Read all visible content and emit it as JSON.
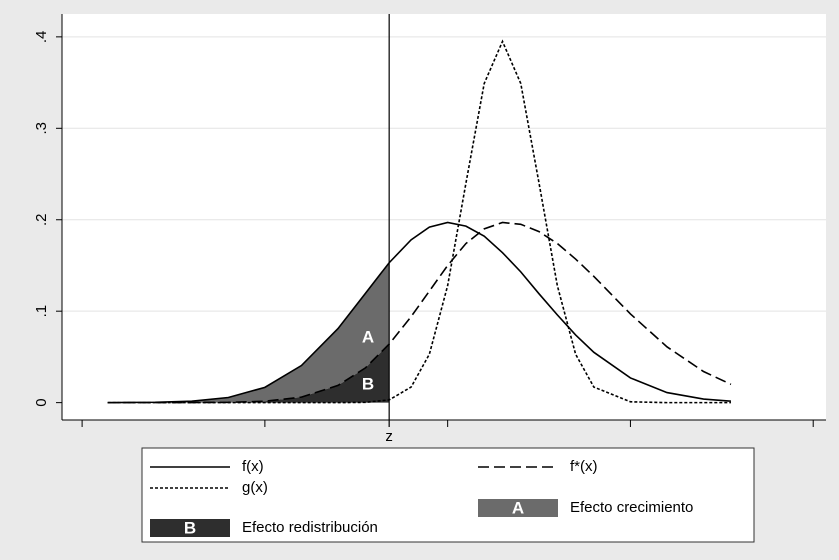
{
  "chart_data": {
    "type": "line",
    "x": [
      0.14,
      0.4,
      0.6,
      0.8,
      1.0,
      1.2,
      1.4,
      1.55,
      1.68,
      1.8,
      1.9,
      2.0,
      2.1,
      2.2,
      2.3,
      2.4,
      2.5,
      2.6,
      2.7,
      2.8,
      3.0,
      3.2,
      3.4,
      3.55
    ],
    "series": [
      {
        "name": "f(x)",
        "color": "#000000",
        "dash": "none",
        "values": [
          0,
          0.0004,
          0.0016,
          0.0056,
          0.0167,
          0.0406,
          0.081,
          0.1195,
          0.153,
          0.178,
          0.192,
          0.197,
          0.193,
          0.182,
          0.164,
          0.143,
          0.119,
          0.096,
          0.074,
          0.055,
          0.027,
          0.011,
          0.0039,
          0.0016
        ]
      },
      {
        "name": "f*(x)",
        "color": "#000000",
        "dash": "11 5",
        "values": [
          0,
          0,
          0.0001,
          0.0003,
          0.0015,
          0.006,
          0.0188,
          0.038,
          0.064,
          0.094,
          0.122,
          0.15,
          0.174,
          0.19,
          0.197,
          0.195,
          0.187,
          0.174,
          0.157,
          0.138,
          0.097,
          0.061,
          0.034,
          0.02
        ]
      },
      {
        "name": "g(x)",
        "color": "#000000",
        "dash": "3 2",
        "values": [
          0,
          0,
          0,
          0,
          0,
          0,
          0,
          0.0003,
          0.003,
          0.017,
          0.053,
          0.128,
          0.24,
          0.349,
          0.395,
          0.349,
          0.24,
          0.128,
          0.053,
          0.017,
          0.0009,
          0,
          0,
          0
        ]
      }
    ],
    "areas": [
      {
        "label": "A",
        "name": "Efecto crecimiento",
        "color": "#6b6b6b"
      },
      {
        "label": "B",
        "name": "Efecto redistribución",
        "color": "#2e2e2e"
      }
    ],
    "zline": {
      "value": 1.68,
      "label": "z"
    },
    "xlim": [
      -0.11,
      4.07
    ],
    "xticks": [
      0,
      1,
      2,
      3,
      4
    ],
    "ylim": [
      -0.019,
      0.425
    ],
    "yticks": [
      0,
      {
        "value": 0.1,
        "label": ".1"
      },
      {
        "value": 0.2,
        "label": ".2"
      },
      {
        "value": 0.3,
        "label": ".3"
      },
      {
        "value": 0.4,
        "label": ".4"
      }
    ],
    "grid": true
  }
}
